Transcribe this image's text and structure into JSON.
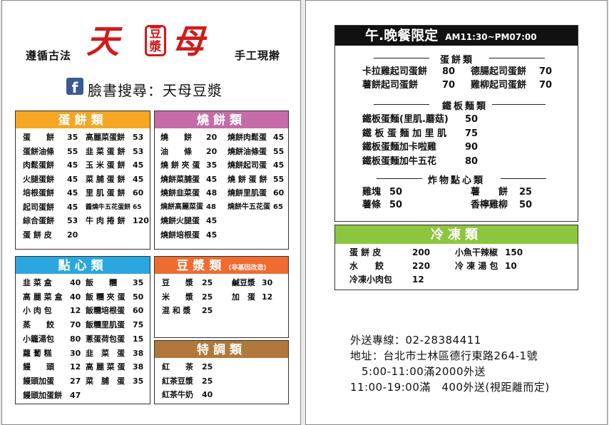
{
  "header": {
    "left_slogan": "遵循古法",
    "right_slogan": "手工現擀",
    "brand_char1": "天",
    "brand_box_char1": "豆",
    "brand_box_char2": "漿",
    "brand_char2": "母",
    "facebook_icon_glyph": "f",
    "facebook_text": "臉書搜尋：天母豆漿"
  },
  "colors": {
    "egg_pancake": "#f5a623",
    "baked_cake": "#c46ba8",
    "dim_sum": "#2aa7df",
    "soy_milk": "#ef6b2f",
    "special": "#b0783a",
    "frozen": "#8cc63f",
    "brand_red": "#d21a1a"
  },
  "egg_pancake": {
    "title": "蛋餅類",
    "left": [
      {
        "name": "蛋　　餅",
        "price": "35"
      },
      {
        "name": "蛋餅油條",
        "price": "55"
      },
      {
        "name": "肉鬆蛋餅",
        "price": "45"
      },
      {
        "name": "火腿蛋餅",
        "price": "45"
      },
      {
        "name": "培根蛋餅",
        "price": "45"
      },
      {
        "name": "起司蛋餅",
        "price": "45"
      },
      {
        "name": "綜合蛋餅",
        "price": "53"
      },
      {
        "name": "蛋 餅 皮",
        "price": "20"
      }
    ],
    "right": [
      {
        "name": "高麗菜蛋餅",
        "price": "53"
      },
      {
        "name": "韭 菜 蛋 餅",
        "price": "53"
      },
      {
        "name": "玉 米 蛋 餅",
        "price": "45"
      },
      {
        "name": "菜 脯 蛋 餅",
        "price": "45"
      },
      {
        "name": "里 肌 蛋 餅",
        "price": "60"
      },
      {
        "name": "醬燒牛五花蛋餅",
        "price": "65"
      },
      {
        "name": "牛 肉 捲 餅",
        "price": "120"
      }
    ]
  },
  "baked_cake": {
    "title": "燒餅類",
    "left": [
      {
        "name": "燒　　餅",
        "price": "20"
      },
      {
        "name": "油　　條",
        "price": "20"
      },
      {
        "name": "燒 餅 夾 蛋",
        "price": "35"
      },
      {
        "name": "燒餅菜脯蛋",
        "price": "45"
      },
      {
        "name": "燒餅韭菜蛋",
        "price": "48"
      },
      {
        "name": "燒餅高麗菜蛋",
        "price": "48"
      },
      {
        "name": "燒餅火腿蛋",
        "price": "45"
      },
      {
        "name": "燒餅培根蛋",
        "price": "45"
      }
    ],
    "right": [
      {
        "name": "燒餅肉鬆蛋",
        "price": "45"
      },
      {
        "name": "燒餅油條蛋",
        "price": "55"
      },
      {
        "name": "燒餅起司蛋",
        "price": "45"
      },
      {
        "name": "燒 餅 蛋 餅",
        "price": "55"
      },
      {
        "name": "燒餅里肌蛋",
        "price": "60"
      },
      {
        "name": "燒餅牛五花蛋",
        "price": "65"
      }
    ]
  },
  "dim_sum": {
    "title": "點心類",
    "left": [
      {
        "name": "韭 菜 盒",
        "price": "40"
      },
      {
        "name": "高 麗 菜 盒",
        "price": "40"
      },
      {
        "name": "小 肉 包",
        "price": "12"
      },
      {
        "name": "蒸　　餃",
        "price": "70"
      },
      {
        "name": "小籠湯包",
        "price": "80"
      },
      {
        "name": "蘿 蔔 糕",
        "price": "30"
      },
      {
        "name": "饅　　頭",
        "price": "12"
      },
      {
        "name": "饅頭加蛋",
        "price": "27"
      },
      {
        "name": "饅頭加蛋餅",
        "price": "47"
      }
    ],
    "right": [
      {
        "name": "飯　　糰",
        "price": "35"
      },
      {
        "name": "飯 糰 夾 蛋",
        "price": "50"
      },
      {
        "name": "飯糰培根蛋",
        "price": "60"
      },
      {
        "name": "飯糰里肌蛋",
        "price": "75"
      },
      {
        "name": "蔥蛋荷包蛋",
        "price": "15"
      },
      {
        "name": "韭　菜　蛋",
        "price": "38"
      },
      {
        "name": "高 麗 菜 蛋",
        "price": "38"
      },
      {
        "name": "菜　脯　蛋",
        "price": "35"
      }
    ]
  },
  "soy_milk": {
    "title": "豆漿類",
    "note": "(非基因改造)",
    "left": [
      {
        "name": "豆　　漿",
        "price": "25"
      },
      {
        "name": "米　　漿",
        "price": "25"
      },
      {
        "name": "混 和 漿",
        "price": "25"
      }
    ],
    "right": [
      {
        "name": "鹹豆漿",
        "price": "30"
      },
      {
        "name": "加　蛋",
        "price": "12"
      }
    ]
  },
  "special": {
    "title": "特調類",
    "items": [
      {
        "name": "紅　　茶",
        "price": "25"
      },
      {
        "name": "紅茶豆漿",
        "price": "25"
      },
      {
        "name": "紅茶牛奶",
        "price": "40"
      }
    ]
  },
  "dinner": {
    "title": "午.晚餐限定",
    "hours": "AM11:30~PM07:00",
    "egg_section": "蛋餅類",
    "egg_left": [
      {
        "name": "卡拉雞起司蛋餅",
        "price": "80"
      },
      {
        "name": "薯餅起司蛋餅",
        "price": "70"
      }
    ],
    "egg_right": [
      {
        "name": "德腸起司蛋餅",
        "price": "70"
      },
      {
        "name": "雞柳起司蛋餅",
        "price": "70"
      }
    ],
    "noodle_section": "鐵板麵類",
    "noodles": [
      {
        "name": "鐵板蛋麵(里肌.蘑菇)",
        "price": "50"
      },
      {
        "name": "鐵 板 蛋 麵 加 里 肌",
        "price": "75"
      },
      {
        "name": "鐵板蛋麵加卡啦雞",
        "price": "90"
      },
      {
        "name": "鐵板蛋麵加牛五花",
        "price": "80"
      }
    ],
    "fried_section": "炸物點心類",
    "fried_left": [
      {
        "name": "雞塊",
        "price": "50"
      },
      {
        "name": "薯條",
        "price": "50"
      }
    ],
    "fried_right": [
      {
        "name": "薯　　餅",
        "price": "25"
      },
      {
        "name": "香檸雞柳",
        "price": "50"
      }
    ]
  },
  "frozen": {
    "title": "冷凍類",
    "left": [
      {
        "name": "蛋 餅 皮",
        "price": "200"
      },
      {
        "name": "水　　餃",
        "price": "220"
      },
      {
        "name": "冷凍小肉包",
        "price": "12"
      }
    ],
    "right": [
      {
        "name": "小魚干辣椒",
        "price": "150"
      },
      {
        "name": "冷 凍 湯 包",
        "price": "10"
      }
    ]
  },
  "contact": {
    "phone": "外送專線：02-28384411",
    "address": "地址：台北市士林區德行東路264-1號",
    "delivery1": "5:00-11:00滿2000外送",
    "delivery2": "11:00-19:00滿　400外送(視距離而定)"
  }
}
